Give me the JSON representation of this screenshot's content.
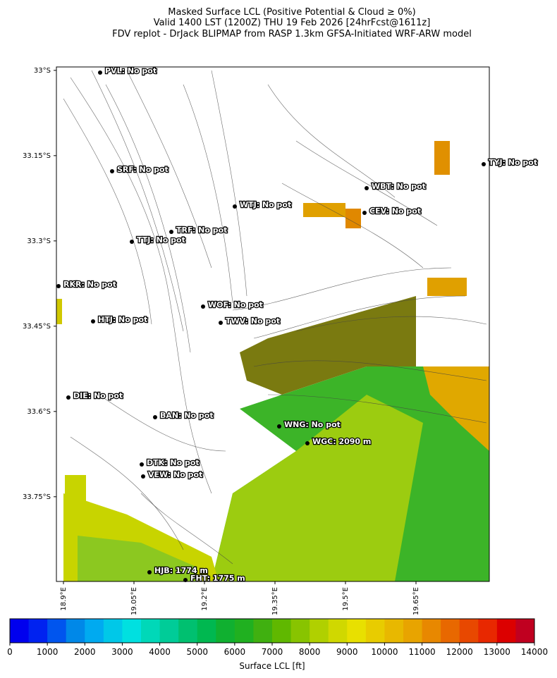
{
  "title": [
    "Masked Surface LCL (Positive Potential & Cloud ≥ 0%)",
    "Valid 1400 LST (1200Z) THU 19 Feb 2026 [24hrFcst@1611z]",
    "FDV replot - DrJack BLIPMAP from RASP 1.3km GFSA-Initiated WRF-ARW model"
  ],
  "map": {
    "xlim": [
      18.885,
      19.806
    ],
    "ylim": [
      -33.899,
      -32.994
    ],
    "yticks": [
      {
        "value": -33,
        "label": "33°S"
      },
      {
        "value": -33.15,
        "label": "33.15°S"
      },
      {
        "value": -33.3,
        "label": "33.3°S"
      },
      {
        "value": -33.45,
        "label": "33.45°S"
      },
      {
        "value": -33.6,
        "label": "33.6°S"
      },
      {
        "value": -33.75,
        "label": "33.75°S"
      }
    ],
    "xticks": [
      {
        "value": 18.9,
        "label": "18.9°E"
      },
      {
        "value": 19.05,
        "label": "19.05°E"
      },
      {
        "value": 19.2,
        "label": "19.2°E"
      },
      {
        "value": 19.35,
        "label": "19.35°E"
      },
      {
        "value": 19.5,
        "label": "19.5°E"
      },
      {
        "value": 19.65,
        "label": "19.65°E"
      }
    ]
  },
  "stations": [
    "PVL: No pot",
    "SRF: No pot",
    "TTJ: No pot",
    "TRF: No pot",
    "WTJ: No pot",
    "RKR: No pot",
    "HTJ: No pot",
    "WOF: No pot",
    "TWV: No pot",
    "TYJ: No pot",
    "WBT: No pot",
    "CEV: No pot",
    "DIE: No pot",
    "BAN: No pot",
    "WNG: No pot",
    "WGC: 2090 m",
    "DTK: No pot",
    "VEW: No pot",
    "HJB: 1774 m",
    "FHT: 1775 m"
  ],
  "colorbar": {
    "label": "Surface LCL [ft]",
    "lim": [
      0,
      14000
    ],
    "ticks": [
      0,
      1000,
      2000,
      3000,
      4000,
      5000,
      6000,
      7000,
      8000,
      9000,
      10000,
      11000,
      12000,
      13000,
      14000
    ],
    "colors": [
      "#0000ee",
      "#0022f0",
      "#0055ee",
      "#0088e8",
      "#00aaf0",
      "#00c8e8",
      "#00e0e0",
      "#00d8b8",
      "#00cc98",
      "#00c070",
      "#00b850",
      "#10b030",
      "#20b020",
      "#40b010",
      "#60b800",
      "#88c400",
      "#b0d000",
      "#d0d800",
      "#e8e000",
      "#e8cc00",
      "#e8b800",
      "#e8a400",
      "#e88800",
      "#e86800",
      "#e84800",
      "#e82800",
      "#dc0000",
      "#c00020"
    ]
  }
}
